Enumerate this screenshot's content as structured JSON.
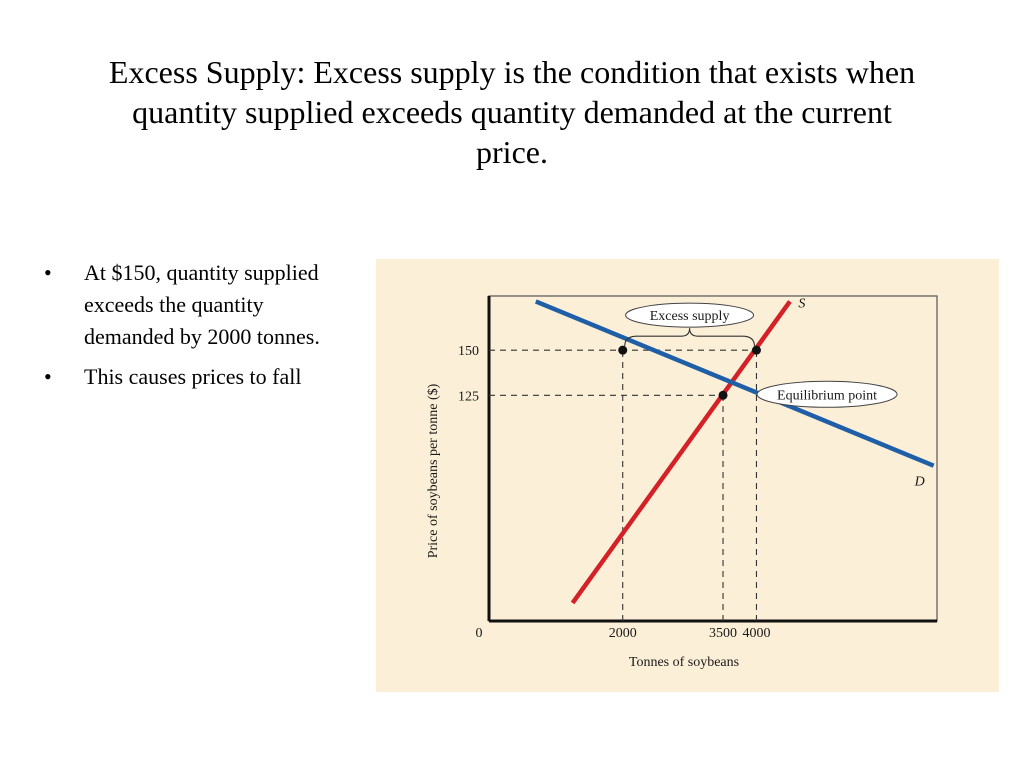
{
  "slide": {
    "title": "Excess Supply: Excess supply is the condition that exists when quantity supplied exceeds quantity demanded at the current price.",
    "bullets": [
      {
        "marker": "•",
        "text": "At $150, quantity supplied exceeds the quantity demanded by 2000 tonnes."
      },
      {
        "marker": "•",
        "text": "This causes prices to fall"
      }
    ]
  },
  "chart_data": {
    "type": "line",
    "xlabel": "Tonnes of soybeans",
    "ylabel": "Price of soybeans per tonne ($)",
    "x_ticks": [
      {
        "value": 2000,
        "label": "2000"
      },
      {
        "value": 3500,
        "label": "3500"
      },
      {
        "value": 4000,
        "label": "4000"
      }
    ],
    "y_ticks": [
      {
        "value": 125,
        "label": "125"
      },
      {
        "value": 150,
        "label": "150"
      }
    ],
    "origin_label": "0",
    "xlim": [
      0,
      6700
    ],
    "ylim": [
      0,
      180
    ],
    "grid": false,
    "series": [
      {
        "name": "S",
        "color": "#d42027",
        "points": [
          [
            1250,
            10
          ],
          [
            4500,
            177
          ]
        ]
      },
      {
        "name": "D",
        "color": "#1f5fa8",
        "points": [
          [
            700,
            177
          ],
          [
            6650,
            86
          ]
        ]
      }
    ],
    "highlight_points": [
      [
        2000,
        150
      ],
      [
        4000,
        150
      ],
      [
        3500,
        125
      ]
    ],
    "reference_lines": [
      {
        "from": [
          0,
          150
        ],
        "to": [
          4000,
          150
        ]
      },
      {
        "from": [
          0,
          125
        ],
        "to": [
          3500,
          125
        ]
      },
      {
        "from": [
          2000,
          0
        ],
        "to": [
          2000,
          150
        ]
      },
      {
        "from": [
          3500,
          0
        ],
        "to": [
          3500,
          125
        ]
      },
      {
        "from": [
          4000,
          0
        ],
        "to": [
          4000,
          150
        ]
      }
    ],
    "annotations": [
      {
        "text": "Excess supply",
        "range": [
          2000,
          4000
        ],
        "y": 150
      },
      {
        "text": "Equilibrium point",
        "x": 3500,
        "y": 125
      }
    ],
    "colors": {
      "background": "#fcefd7",
      "supply": "#d42027",
      "demand": "#1f5fa8"
    }
  }
}
